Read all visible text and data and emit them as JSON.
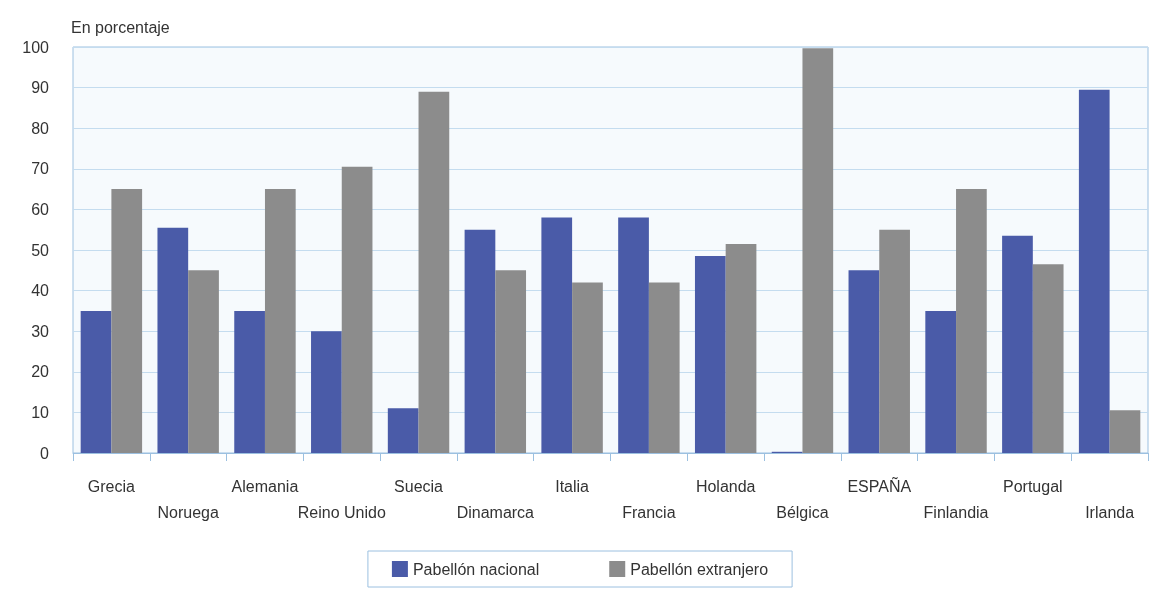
{
  "chart_data": {
    "type": "bar",
    "ylabel": "En porcentaje",
    "categories": [
      "Grecia",
      "Noruega",
      "Alemania",
      "Reino Unido",
      "Suecia",
      "Dinamarca",
      "Italia",
      "Francia",
      "Holanda",
      "Bélgica",
      "ESPAÑA",
      "Finlandia",
      "Portugal",
      "Irlanda"
    ],
    "series": [
      {
        "name": "Pabellón nacional",
        "color": "#4a5ba8",
        "values": [
          35,
          55.5,
          35,
          30,
          11,
          55,
          58,
          58,
          48.5,
          0.3,
          45,
          35,
          53.5,
          89.5
        ]
      },
      {
        "name": "Pabellón extranjero",
        "color": "#8c8c8c",
        "values": [
          65,
          45,
          65,
          70.5,
          89,
          45,
          42,
          42,
          51.5,
          99.7,
          55,
          65,
          46.5,
          10.5
        ]
      }
    ],
    "ylim": [
      0,
      100
    ],
    "yticks": [
      0,
      10,
      20,
      30,
      40,
      50,
      60,
      70,
      80,
      90,
      100
    ],
    "grid": "y",
    "legend": "bottom"
  }
}
